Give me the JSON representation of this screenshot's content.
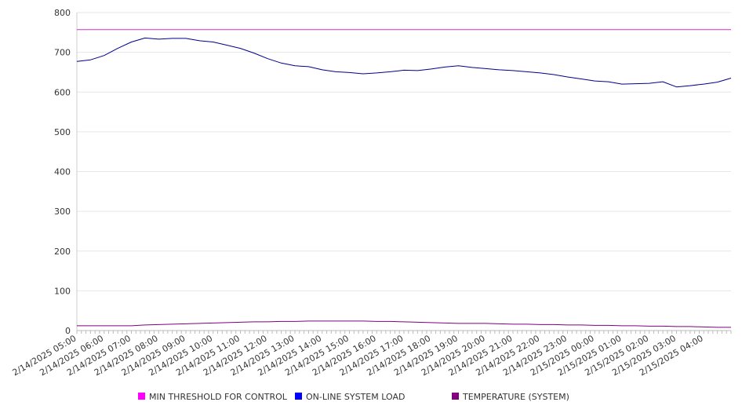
{
  "chart_data": {
    "type": "line",
    "title": "",
    "xlabel": "",
    "ylabel": "",
    "ylim": [
      0,
      800
    ],
    "yticks": [
      0,
      100,
      200,
      300,
      400,
      500,
      600,
      700,
      800
    ],
    "grid": "horizontal",
    "legend_placement": "bottom",
    "x_tick_labels": [
      "2/14/2025 05:00",
      "2/14/2025 06:00",
      "2/14/2025 07:00",
      "2/14/2025 08:00",
      "2/14/2025 09:00",
      "2/14/2025 10:00",
      "2/14/2025 11:00",
      "2/14/2025 12:00",
      "2/14/2025 13:00",
      "2/14/2025 14:00",
      "2/14/2025 15:00",
      "2/14/2025 16:00",
      "2/14/2025 17:00",
      "2/14/2025 18:00",
      "2/14/2025 19:00",
      "2/14/2025 20:00",
      "2/14/2025 21:00",
      "2/14/2025 22:00",
      "2/14/2025 23:00",
      "2/15/2025 00:00",
      "2/15/2025 01:00",
      "2/15/2025 02:00",
      "2/15/2025 03:00",
      "2/15/2025 04:00"
    ],
    "x": [
      "2/14/2025 05:00",
      "2/14/2025 05:30",
      "2/14/2025 06:00",
      "2/14/2025 06:30",
      "2/14/2025 07:00",
      "2/14/2025 07:30",
      "2/14/2025 08:00",
      "2/14/2025 08:30",
      "2/14/2025 09:00",
      "2/14/2025 09:30",
      "2/14/2025 10:00",
      "2/14/2025 10:30",
      "2/14/2025 11:00",
      "2/14/2025 11:30",
      "2/14/2025 12:00",
      "2/14/2025 12:30",
      "2/14/2025 13:00",
      "2/14/2025 13:30",
      "2/14/2025 14:00",
      "2/14/2025 14:30",
      "2/14/2025 15:00",
      "2/14/2025 15:30",
      "2/14/2025 16:00",
      "2/14/2025 16:30",
      "2/14/2025 17:00",
      "2/14/2025 17:30",
      "2/14/2025 18:00",
      "2/14/2025 18:30",
      "2/14/2025 19:00",
      "2/14/2025 19:30",
      "2/14/2025 20:00",
      "2/14/2025 20:30",
      "2/14/2025 21:00",
      "2/14/2025 21:30",
      "2/14/2025 22:00",
      "2/14/2025 22:30",
      "2/14/2025 23:00",
      "2/14/2025 23:30",
      "2/15/2025 00:00",
      "2/15/2025 00:30",
      "2/15/2025 01:00",
      "2/15/2025 01:30",
      "2/15/2025 02:00",
      "2/15/2025 02:30",
      "2/15/2025 03:00",
      "2/15/2025 03:30",
      "2/15/2025 04:00",
      "2/15/2025 04:30",
      "2/15/2025 05:00"
    ],
    "series": [
      {
        "name": "MIN THRESHOLD FOR CONTROL",
        "color": "#ff00ff",
        "line_color": "#cc33cc",
        "values": [
          757,
          757,
          757,
          757,
          757,
          757,
          757,
          757,
          757,
          757,
          757,
          757,
          757,
          757,
          757,
          757,
          757,
          757,
          757,
          757,
          757,
          757,
          757,
          757,
          757,
          757,
          757,
          757,
          757,
          757,
          757,
          757,
          757,
          757,
          757,
          757,
          757,
          757,
          757,
          757,
          757,
          757,
          757,
          757,
          757,
          757,
          757,
          757,
          757
        ]
      },
      {
        "name": "ON-LINE SYSTEM LOAD",
        "color": "#0000ff",
        "line_color": "#00008b",
        "values": [
          677,
          681,
          692,
          710,
          726,
          736,
          733,
          735,
          735,
          729,
          726,
          718,
          710,
          698,
          684,
          673,
          666,
          664,
          656,
          651,
          649,
          646,
          648,
          651,
          655,
          654,
          658,
          663,
          666,
          662,
          659,
          656,
          654,
          651,
          648,
          644,
          638,
          633,
          628,
          626,
          620,
          621,
          622,
          626,
          613,
          616,
          620,
          625,
          635
        ]
      },
      {
        "name": "TEMPERATURE (SYSTEM)",
        "color": "#800080",
        "line_color": "#800080",
        "values": [
          12,
          12,
          12,
          12,
          12,
          14,
          15,
          16,
          17,
          18,
          19,
          20,
          21,
          22,
          22,
          23,
          23,
          24,
          24,
          24,
          24,
          24,
          23,
          23,
          22,
          21,
          20,
          19,
          18,
          18,
          18,
          17,
          16,
          16,
          15,
          15,
          14,
          14,
          13,
          13,
          12,
          12,
          11,
          11,
          10,
          10,
          9,
          8,
          8
        ]
      }
    ]
  }
}
